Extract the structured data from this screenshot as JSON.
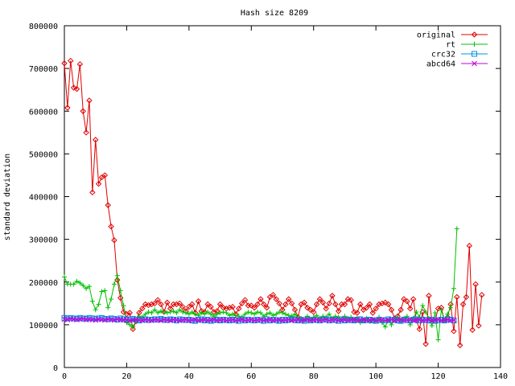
{
  "chart_data": {
    "type": "line",
    "title": "Hash size 8209",
    "xlabel": "",
    "ylabel": "standard deviation",
    "xlim": [
      0,
      140
    ],
    "ylim": [
      0,
      800000
    ],
    "xticks": [
      0,
      20,
      40,
      60,
      80,
      100,
      120,
      140
    ],
    "yticks": [
      0,
      100000,
      200000,
      300000,
      400000,
      500000,
      600000,
      700000,
      800000
    ],
    "legend_position": "top-right",
    "grid": false,
    "series": [
      {
        "name": "original",
        "color": "#e00000",
        "marker": "diamond",
        "values": [
          712000,
          608000,
          718000,
          655000,
          652000,
          710000,
          600000,
          550000,
          625000,
          410000,
          533000,
          430000,
          445000,
          450000,
          380000,
          330000,
          298000,
          205000,
          163000,
          130000,
          125000,
          128000,
          90000,
          108000,
          128000,
          138000,
          148000,
          146000,
          148000,
          150000,
          158000,
          148000,
          130000,
          152000,
          138000,
          148000,
          148000,
          150000,
          142000,
          132000,
          142000,
          148000,
          128000,
          155000,
          132000,
          130000,
          148000,
          142000,
          130000,
          132000,
          148000,
          140000,
          138000,
          140000,
          142000,
          125000,
          138000,
          150000,
          158000,
          145000,
          145000,
          140000,
          148000,
          160000,
          148000,
          140000,
          165000,
          170000,
          160000,
          150000,
          135000,
          148000,
          160000,
          150000,
          135000,
          118000,
          148000,
          152000,
          140000,
          135000,
          130000,
          148000,
          160000,
          152000,
          138000,
          150000,
          168000,
          148000,
          132000,
          148000,
          148000,
          160000,
          158000,
          130000,
          128000,
          148000,
          135000,
          140000,
          148000,
          128000,
          138000,
          148000,
          150000,
          152000,
          148000,
          135000,
          115000,
          120000,
          135000,
          160000,
          155000,
          138000,
          160000,
          110000,
          90000,
          130000,
          55000,
          168000,
          108000,
          110000,
          138000,
          140000,
          110000,
          118000,
          148000,
          85000,
          165000,
          52000,
          148000,
          165000,
          285000,
          88000,
          195000,
          98000,
          170000
        ]
      },
      {
        "name": "rt",
        "color": "#00c000",
        "marker": "plus",
        "values": [
          212000,
          195000,
          195000,
          195000,
          202000,
          198000,
          192000,
          185000,
          190000,
          155000,
          135000,
          148000,
          178000,
          180000,
          140000,
          160000,
          195000,
          215000,
          180000,
          145000,
          105000,
          100000,
          95000,
          108000,
          120000,
          118000,
          125000,
          130000,
          128000,
          135000,
          128000,
          132000,
          130000,
          128000,
          130000,
          132000,
          128000,
          135000,
          130000,
          128000,
          125000,
          130000,
          125000,
          122000,
          128000,
          125000,
          130000,
          125000,
          120000,
          125000,
          128000,
          130000,
          128000,
          122000,
          125000,
          122000,
          120000,
          118000,
          125000,
          130000,
          128000,
          125000,
          130000,
          128000,
          120000,
          125000,
          128000,
          122000,
          125000,
          130000,
          128000,
          125000,
          122000,
          120000,
          125000,
          118000,
          115000,
          110000,
          120000,
          112000,
          118000,
          122000,
          115000,
          120000,
          118000,
          125000,
          115000,
          120000,
          118000,
          112000,
          120000,
          115000,
          118000,
          112000,
          115000,
          105000,
          110000,
          115000,
          108000,
          112000,
          110000,
          118000,
          105000,
          95000,
          110000,
          100000,
          112000,
          118000,
          108000,
          115000,
          120000,
          100000,
          115000,
          130000,
          118000,
          145000,
          130000,
          115000,
          98000,
          128000,
          65000,
          135000,
          110000,
          125000,
          140000,
          185000,
          325000
        ]
      },
      {
        "name": "crc32",
        "color": "#0090e0",
        "marker": "square",
        "values": [
          116000,
          115000,
          116000,
          115000,
          114000,
          116000,
          115000,
          114000,
          116000,
          115000,
          114000,
          115000,
          116000,
          114000,
          113000,
          115000,
          114000,
          112000,
          115000,
          113000,
          112000,
          113000,
          114000,
          112000,
          110000,
          112000,
          113000,
          111000,
          112000,
          113000,
          112000,
          114000,
          112000,
          111000,
          113000,
          112000,
          110000,
          113000,
          112000,
          111000,
          112000,
          110000,
          109000,
          112000,
          113000,
          110000,
          112000,
          109000,
          111000,
          112000,
          110000,
          112000,
          111000,
          110000,
          112000,
          111000,
          109000,
          113000,
          110000,
          112000,
          111000,
          110000,
          112000,
          111000,
          109000,
          113000,
          110000,
          112000,
          111000,
          109000,
          112000,
          110000,
          112000,
          113000,
          111000,
          110000,
          112000,
          109000,
          113000,
          110000,
          112000,
          111000,
          110000,
          112000,
          113000,
          110000,
          112000,
          111000,
          109000,
          113000,
          110000,
          112000,
          111000,
          110000,
          112000,
          113000,
          110000,
          111000,
          112000,
          110000,
          109000,
          112000,
          111000,
          110000,
          113000,
          111000,
          112000,
          110000,
          109000,
          112000,
          111000,
          110000,
          112000,
          113000,
          110000,
          112000,
          111000,
          110000,
          112000,
          109000,
          111000,
          112000,
          110000,
          113000,
          112000,
          110000
        ]
      },
      {
        "name": "abcd64",
        "color": "#c000e0",
        "marker": "cross",
        "values": [
          113000,
          112000,
          114000,
          113000,
          112000,
          113000,
          114000,
          112000,
          113000,
          112000,
          111000,
          113000,
          112000,
          111000,
          113000,
          112000,
          111000,
          113000,
          112000,
          111000,
          112000,
          110000,
          111000,
          112000,
          111000,
          110000,
          112000,
          111000,
          110000,
          112000,
          111000,
          110000,
          112000,
          111000,
          110000,
          112000,
          111000,
          110000,
          111000,
          112000,
          110000,
          111000,
          112000,
          110000,
          111000,
          112000,
          110000,
          111000,
          112000,
          110000,
          111000,
          112000,
          110000,
          111000,
          112000,
          110000,
          111000,
          112000,
          110000,
          111000,
          112000,
          110000,
          111000,
          112000,
          110000,
          111000,
          112000,
          110000,
          111000,
          112000,
          110000,
          111000,
          112000,
          110000,
          111000,
          112000,
          110000,
          111000,
          112000,
          110000,
          111000,
          112000,
          110000,
          111000,
          112000,
          110000,
          111000,
          112000,
          110000,
          111000,
          112000,
          110000,
          111000,
          112000,
          110000,
          111000,
          112000,
          110000,
          111000,
          112000,
          110000,
          111000,
          112000,
          110000,
          111000,
          112000,
          110000,
          111000,
          112000,
          110000,
          111000,
          112000,
          110000,
          111000,
          112000,
          110000,
          111000,
          112000,
          110000,
          111000,
          112000,
          110000,
          111000,
          112000,
          110000,
          111000
        ]
      }
    ]
  }
}
